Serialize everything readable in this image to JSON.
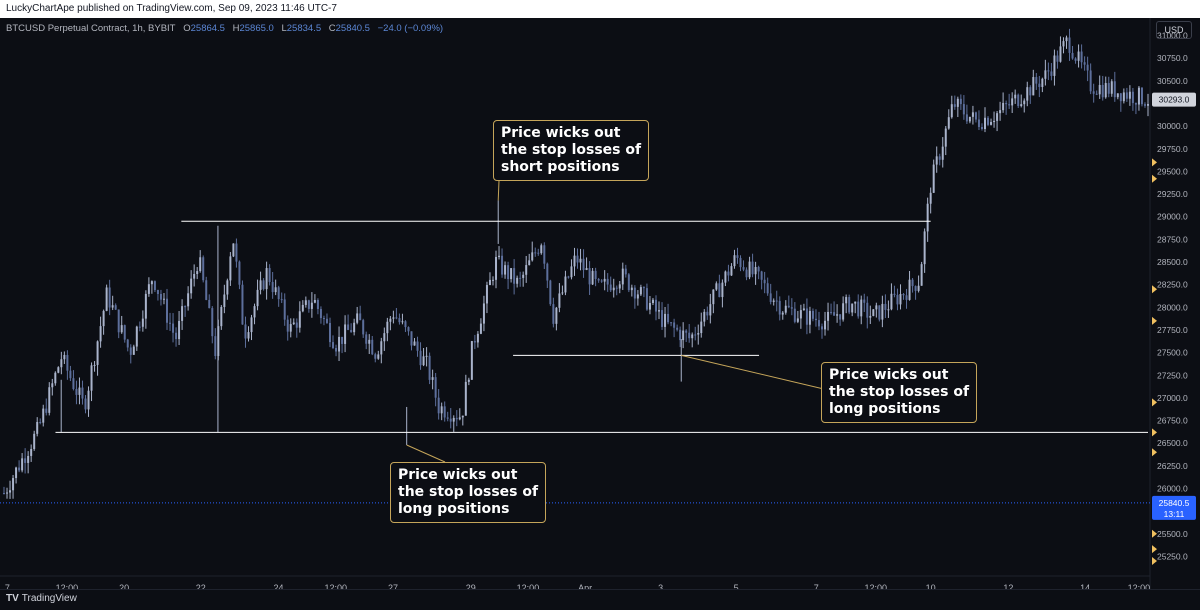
{
  "header": {
    "published_text": "LuckyChartApe published on TradingView.com, Sep 09, 2023 11:46 UTC-7"
  },
  "legend": {
    "symbol": "BTCUSD Perpetual Contract, 1h, BYBIT",
    "o_label": "O",
    "o_value": "25864.5",
    "h_label": "H",
    "h_value": "25865.0",
    "l_label": "L",
    "l_value": "25834.5",
    "c_label": "C",
    "c_value": "25840.5",
    "change": "−24.0 (−0.09%)"
  },
  "currency_label": "USD",
  "footer": {
    "brand": "TradingView"
  },
  "colors": {
    "candle": "#aab4cc",
    "candle_dark": "#5d6f9c",
    "level_line": "#ffffff",
    "annotation_border": "#c5a55a",
    "price_badge": "#2962ff",
    "marker": "#f0c060"
  },
  "chart_data": {
    "type": "candlestick",
    "title": "BTCUSD Perpetual Contract, 1h, BYBIT",
    "ylim": [
      25100,
      31150
    ],
    "y_ticks": [
      31000,
      30750,
      30500,
      30250,
      30000,
      29750,
      29500,
      29250,
      29000,
      28750,
      28500,
      28250,
      28000,
      27750,
      27500,
      27250,
      27000,
      26750,
      26500,
      26250,
      26000,
      25750,
      25500,
      25250
    ],
    "y_tick_labels": [
      "31000.0",
      "30750.0",
      "30500.0",
      "30250.0",
      "30000.0",
      "29750.0",
      "29500.0",
      "29250.0",
      "29000.0",
      "28750.0",
      "28500.0",
      "28250.0",
      "28000.0",
      "27750.0",
      "27500.0",
      "27250.0",
      "27000.0",
      "26750.0",
      "26500.0",
      "26250.0",
      "26000.0",
      "25750.0",
      "25500.0",
      "25250.0"
    ],
    "x_tick_labels": [
      "7",
      "12:00",
      "20",
      "22",
      "24",
      "12:00",
      "27",
      "29",
      "12:00",
      "Apr",
      "3",
      "5",
      "7",
      "12:00",
      "10",
      "12",
      "14",
      "12:00"
    ],
    "price_path": [
      [
        0,
        25950
      ],
      [
        0.03,
        26650
      ],
      [
        0.05,
        27450
      ],
      [
        0.07,
        26900
      ],
      [
        0.09,
        28150
      ],
      [
        0.11,
        27500
      ],
      [
        0.13,
        28350
      ],
      [
        0.15,
        27650
      ],
      [
        0.17,
        28550
      ],
      [
        0.185,
        27500
      ],
      [
        0.2,
        28800
      ],
      [
        0.21,
        27700
      ],
      [
        0.23,
        28400
      ],
      [
        0.25,
        27750
      ],
      [
        0.27,
        28100
      ],
      [
        0.29,
        27600
      ],
      [
        0.31,
        27850
      ],
      [
        0.325,
        27500
      ],
      [
        0.34,
        27950
      ],
      [
        0.355,
        27650
      ],
      [
        0.37,
        27350
      ],
      [
        0.38,
        26900
      ],
      [
        0.4,
        26800
      ],
      [
        0.41,
        27600
      ],
      [
        0.43,
        28500
      ],
      [
        0.45,
        28250
      ],
      [
        0.47,
        28750
      ],
      [
        0.48,
        27900
      ],
      [
        0.5,
        28550
      ],
      [
        0.52,
        28200
      ],
      [
        0.54,
        28350
      ],
      [
        0.56,
        28100
      ],
      [
        0.58,
        27800
      ],
      [
        0.6,
        27650
      ],
      [
        0.62,
        28100
      ],
      [
        0.64,
        28550
      ],
      [
        0.66,
        28300
      ],
      [
        0.68,
        28000
      ],
      [
        0.7,
        27900
      ],
      [
        0.72,
        27850
      ],
      [
        0.74,
        28050
      ],
      [
        0.76,
        27900
      ],
      [
        0.78,
        28100
      ],
      [
        0.8,
        28300
      ],
      [
        0.81,
        29350
      ],
      [
        0.83,
        30250
      ],
      [
        0.85,
        30050
      ],
      [
        0.87,
        30150
      ],
      [
        0.89,
        30350
      ],
      [
        0.91,
        30550
      ],
      [
        0.93,
        30950
      ],
      [
        0.95,
        30450
      ],
      [
        0.97,
        30400
      ],
      [
        1.0,
        30293
      ]
    ],
    "last_price": 25840.5,
    "last_price_label": "25840.5",
    "countdown": "13:11",
    "current_price_label": "30293.0",
    "current_price": 30293.0,
    "levels": [
      {
        "price": 28950,
        "from": 0.155,
        "to": 0.81
      },
      {
        "price": 27470,
        "from": 0.445,
        "to": 0.66
      },
      {
        "price": 26620,
        "from": 0.045,
        "to": 1.0
      }
    ],
    "markers_right": [
      29600,
      29420,
      28200,
      27850,
      26950,
      26620,
      26400,
      25500,
      25330,
      25200
    ],
    "annotations": [
      {
        "text": "Price wicks out\nthe stop losses of\nshort positions",
        "point_x": 0.43,
        "point_price": 29150
      },
      {
        "text": "Price wicks out\nthe stop losses of\nlong positions",
        "point_x": 0.59,
        "point_price": 27470
      },
      {
        "text": "Price wicks out\nthe stop losses of\nlong positions",
        "point_x": 0.35,
        "point_price": 26500
      }
    ]
  }
}
